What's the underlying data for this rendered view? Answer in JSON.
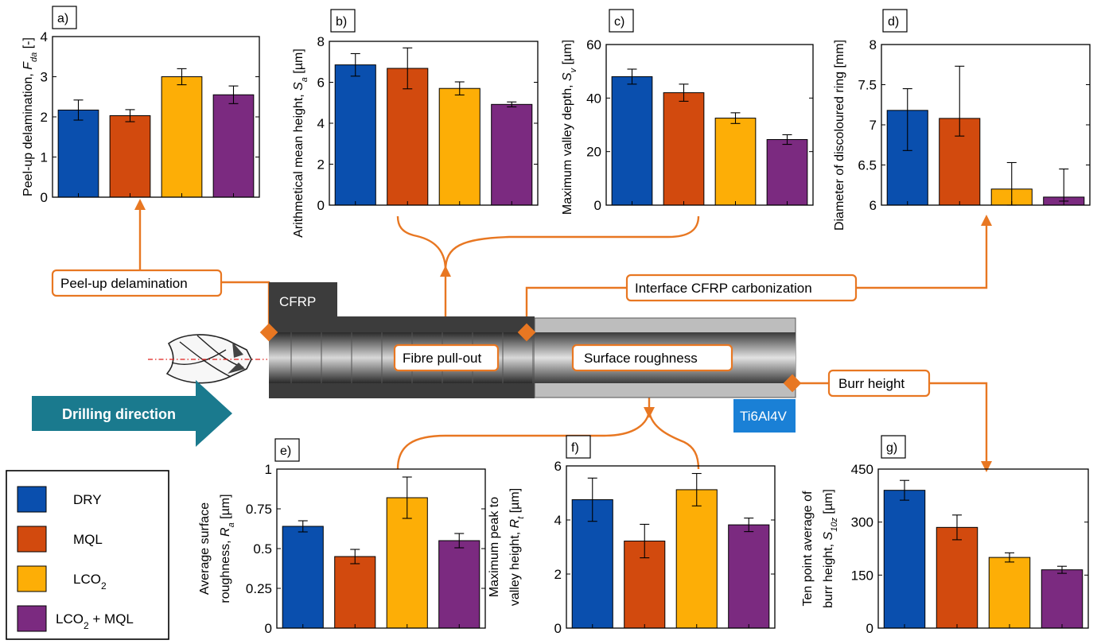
{
  "colors": {
    "dry": "#0a4fae",
    "mql": "#d24a0e",
    "lco2": "#fdae06",
    "lco2mql": "#7b2a80",
    "accent": "#e87722",
    "arrow": "#1a7a8e",
    "ti": "#1a80d6"
  },
  "legend": {
    "entries": [
      {
        "key": "dry",
        "label": "DRY"
      },
      {
        "key": "mql",
        "label": "MQL"
      },
      {
        "key": "lco2",
        "label": "LCO",
        "sub": "2",
        "tail": ""
      },
      {
        "key": "lco2mql",
        "label": "LCO",
        "sub": "2",
        "tail": " + MQL"
      }
    ]
  },
  "diagram": {
    "cfrp_label": "CFRP",
    "ti_label": "Ti6Al4V",
    "drilling_label": "Drilling direction",
    "callouts": {
      "peel": "Peel-up delamination",
      "fibre": "Fibre pull-out",
      "interface": "Interface CFRP carbonization",
      "roughness": "Surface roughness",
      "burr": "Burr height"
    }
  },
  "chart_data": [
    {
      "id": "a",
      "panel_label": "a)",
      "type": "bar",
      "ylabel": "Peel-up delamination,",
      "ylabel_sym": "F",
      "ylabel_sub": "da",
      "ylabel_unit": " [-]",
      "ylim": [
        0,
        4
      ],
      "yticks": [
        0,
        1,
        2,
        3,
        4
      ],
      "ytick_labels": [
        "0",
        "1",
        "2",
        "3",
        "4"
      ],
      "categories": [
        "DRY",
        "MQL",
        "LCO2",
        "LCO2 + MQL"
      ],
      "values": [
        2.17,
        2.03,
        3.0,
        2.55
      ],
      "err": [
        0.25,
        0.15,
        0.2,
        0.22
      ]
    },
    {
      "id": "b",
      "panel_label": "b)",
      "type": "bar",
      "ylabel": "Arithmetical mean height,",
      "ylabel_sym": "S",
      "ylabel_sub": "a",
      "ylabel_unit": " [µm]",
      "ylim": [
        0,
        8
      ],
      "yticks": [
        0,
        2,
        4,
        6,
        8
      ],
      "ytick_labels": [
        "0",
        "2",
        "4",
        "6",
        "8"
      ],
      "categories": [
        "DRY",
        "MQL",
        "LCO2",
        "LCO2 + MQL"
      ],
      "values": [
        6.85,
        6.68,
        5.7,
        4.92
      ],
      "err": [
        0.55,
        1.0,
        0.32,
        0.12
      ]
    },
    {
      "id": "c",
      "panel_label": "c)",
      "type": "bar",
      "ylabel": "Maximum  valley depth,",
      "ylabel_sym": "S",
      "ylabel_sub": "v",
      "ylabel_unit": " [µm]",
      "ylim": [
        0,
        60
      ],
      "yticks": [
        0,
        20,
        40,
        60
      ],
      "ytick_labels": [
        "0",
        "20",
        "40",
        "60"
      ],
      "categories": [
        "DRY",
        "MQL",
        "LCO2",
        "LCO2 + MQL"
      ],
      "values": [
        48,
        42,
        32.5,
        24.5
      ],
      "err": [
        2.8,
        3.2,
        2.0,
        1.8
      ]
    },
    {
      "id": "d",
      "panel_label": "d)",
      "type": "bar",
      "ylabel": "Diameter of discoloured ring [mm]",
      "ylabel_sym": "",
      "ylabel_sub": "",
      "ylabel_unit": "",
      "ylim": [
        6,
        8
      ],
      "yticks": [
        6,
        6.5,
        7,
        7.5,
        8
      ],
      "ytick_labels": [
        "6",
        "6.5",
        "7",
        "7.5",
        "8"
      ],
      "categories": [
        "DRY",
        "MQL",
        "LCO2",
        "LCO2 + MQL"
      ],
      "values": [
        7.18,
        7.08,
        6.2,
        6.1
      ],
      "err_low": [
        0.5,
        0.22,
        0.2,
        0.05
      ],
      "err_high": [
        0.27,
        0.65,
        0.33,
        0.35
      ]
    },
    {
      "id": "e",
      "panel_label": "e)",
      "type": "bar",
      "ylabel": "Average surface",
      "ylabel2": "roughness,",
      "ylabel_sym": "R",
      "ylabel_sub": "a",
      "ylabel_unit": " [µm]",
      "ylim": [
        0,
        1
      ],
      "yticks": [
        0,
        0.25,
        0.5,
        0.75,
        1
      ],
      "ytick_labels": [
        "0",
        "0.25",
        "0.5",
        "0.75",
        "1"
      ],
      "categories": [
        "DRY",
        "MQL",
        "LCO2",
        "LCO2 + MQL"
      ],
      "values": [
        0.64,
        0.45,
        0.82,
        0.55
      ],
      "err": [
        0.035,
        0.045,
        0.13,
        0.045
      ]
    },
    {
      "id": "f",
      "panel_label": "f)",
      "type": "bar",
      "ylabel": "Maximum peak to",
      "ylabel2": "valley  height,",
      "ylabel_sym": "R",
      "ylabel_sub": "t",
      "ylabel_unit": " [µm]",
      "ylim": [
        0,
        6
      ],
      "yticks": [
        0,
        2,
        4,
        6
      ],
      "ytick_labels": [
        "0",
        "2",
        "4",
        "6"
      ],
      "categories": [
        "DRY",
        "MQL",
        "LCO2",
        "LCO2 + MQL"
      ],
      "values": [
        4.75,
        3.22,
        5.12,
        3.82
      ],
      "err": [
        0.8,
        0.62,
        0.6,
        0.25
      ]
    },
    {
      "id": "g",
      "panel_label": "g)",
      "type": "bar",
      "ylabel": "Ten point average of",
      "ylabel2": "burr height,",
      "ylabel_sym": "S",
      "ylabel_sub": "10z",
      "ylabel_unit": " [µm]",
      "ylim": [
        0,
        450
      ],
      "yticks": [
        0,
        150,
        300,
        450
      ],
      "ytick_labels": [
        "0",
        "150",
        "300",
        "450"
      ],
      "categories": [
        "DRY",
        "MQL",
        "LCO2",
        "LCO2 + MQL"
      ],
      "values": [
        390,
        285,
        200,
        165
      ],
      "err": [
        28,
        35,
        13,
        10
      ]
    }
  ]
}
